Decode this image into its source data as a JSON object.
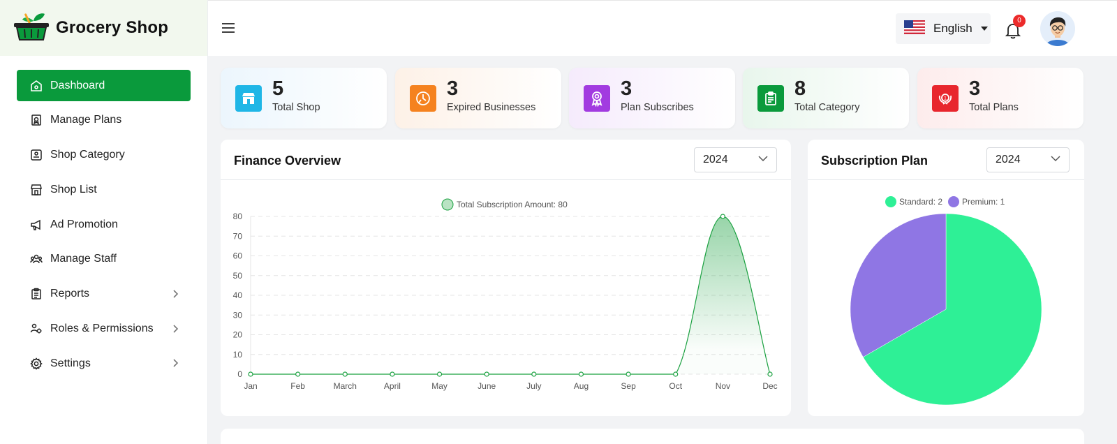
{
  "brand": {
    "name": "Grocery Shop"
  },
  "sidebar": {
    "items": [
      {
        "label": "Dashboard"
      },
      {
        "label": "Manage Plans"
      },
      {
        "label": "Shop Category"
      },
      {
        "label": "Shop List"
      },
      {
        "label": "Ad Promotion"
      },
      {
        "label": "Manage Staff"
      },
      {
        "label": "Reports"
      },
      {
        "label": "Roles & Permissions"
      },
      {
        "label": "Settings"
      }
    ]
  },
  "topbar": {
    "language": "English",
    "notification_count": "0"
  },
  "stats": [
    {
      "value": "5",
      "label": "Total Shop",
      "color": "#1fb6e6"
    },
    {
      "value": "3",
      "label": "Expired Businesses",
      "color": "#f5821f"
    },
    {
      "value": "3",
      "label": "Plan Subscribes",
      "color": "#a23be0"
    },
    {
      "value": "8",
      "label": "Total Category",
      "color": "#0a9a3c"
    },
    {
      "value": "3",
      "label": "Total Plans",
      "color": "#e8262d"
    }
  ],
  "finance": {
    "title": "Finance Overview",
    "year": "2024"
  },
  "subscription": {
    "title": "Subscription Plan",
    "year": "2024"
  },
  "chart_data": [
    {
      "type": "area",
      "legend": "Total Subscription Amount: 80",
      "categories": [
        "Jan",
        "Feb",
        "March",
        "April",
        "May",
        "June",
        "July",
        "Aug",
        "Sep",
        "Oct",
        "Nov",
        "Dec"
      ],
      "series": [
        {
          "name": "Total Subscription Amount",
          "values": [
            0,
            0,
            0,
            0,
            0,
            0,
            0,
            0,
            0,
            0,
            80,
            0
          ]
        }
      ],
      "ylim": [
        0,
        80
      ],
      "yticks": [
        0,
        10,
        20,
        30,
        40,
        50,
        60,
        70,
        80
      ],
      "grid": true,
      "color": "#19a03f"
    },
    {
      "type": "pie",
      "legend_items": [
        "Standard: 2",
        "Premium: 1"
      ],
      "labels": [
        "Standard",
        "Premium"
      ],
      "values": [
        2,
        1
      ],
      "colors": [
        "#2ef096",
        "#8f76e4"
      ]
    }
  ]
}
